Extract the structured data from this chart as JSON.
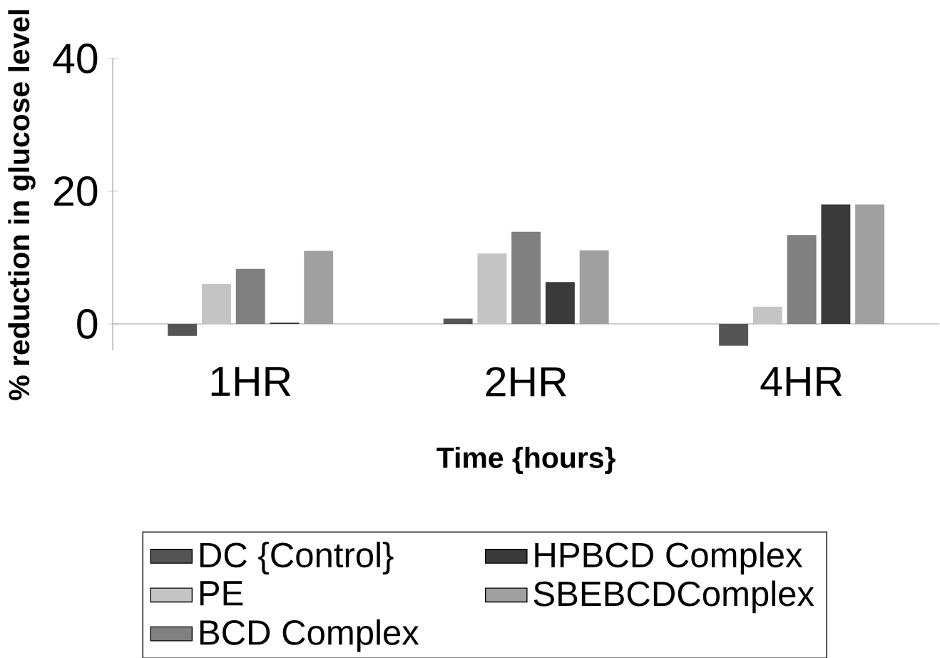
{
  "chart_data": {
    "type": "bar",
    "xlabel": "Time {hours}",
    "ylabel": "% reduction in glucose level",
    "categories": [
      "1HR",
      "2HR",
      "4HR"
    ],
    "series": [
      {
        "name": "DC {Control}",
        "color": "#555555",
        "values": [
          -1.8,
          0.8,
          -3.3
        ]
      },
      {
        "name": "PE",
        "color": "#c4c4c4",
        "values": [
          6,
          10.6,
          2.6
        ]
      },
      {
        "name": "BCD Complex",
        "color": "#808080",
        "values": [
          8.3,
          13.9,
          13.4
        ]
      },
      {
        "name": "HPBCD Complex",
        "color": "#3a3a3a",
        "values": [
          0.2,
          6.3,
          18
        ]
      },
      {
        "name": "SBEBCDComplex",
        "color": "#a0a0a0",
        "values": [
          11,
          11.1,
          18
        ]
      }
    ],
    "ylim": [
      -4,
      40
    ],
    "yticks": [
      0,
      20,
      40
    ],
    "grid": false,
    "legend": "bottom"
  }
}
